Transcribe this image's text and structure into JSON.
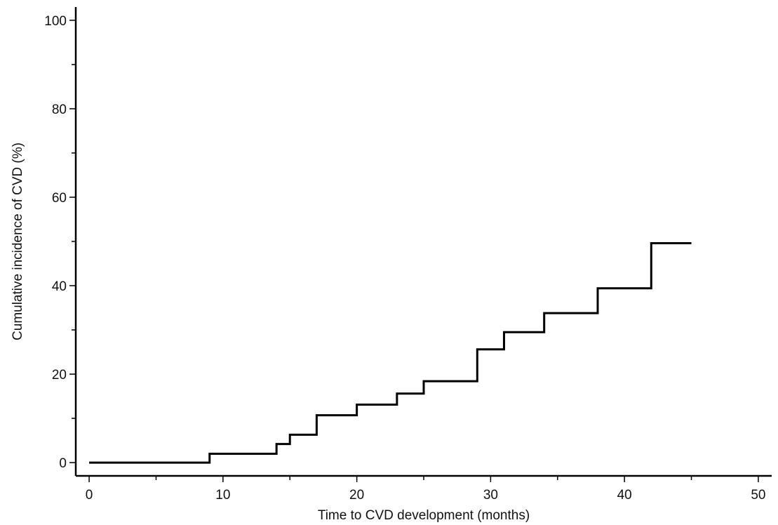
{
  "chart_data": {
    "type": "line",
    "subtype": "step",
    "title": "",
    "xlabel": "Time to CVD development (months)",
    "ylabel": "Cumulative incidence of CVD (%)",
    "xlim": [
      -1,
      51
    ],
    "ylim": [
      -3,
      103
    ],
    "x_ticks": [
      0,
      10,
      20,
      30,
      40,
      50
    ],
    "x_minor_ticks": [
      5,
      15,
      25,
      35,
      45
    ],
    "y_ticks": [
      0,
      20,
      40,
      60,
      80,
      100
    ],
    "y_minor_ticks": [
      10,
      30,
      50,
      70,
      90
    ],
    "grid": false,
    "series": [
      {
        "x": [
          0,
          9,
          14,
          15,
          17,
          20,
          23,
          25,
          29,
          31,
          34,
          38,
          42,
          45
        ],
        "y": [
          0,
          2.0,
          4.2,
          6.3,
          10.7,
          13.1,
          15.6,
          18.4,
          25.6,
          29.5,
          33.8,
          39.4,
          49.6,
          49.6
        ]
      }
    ]
  }
}
